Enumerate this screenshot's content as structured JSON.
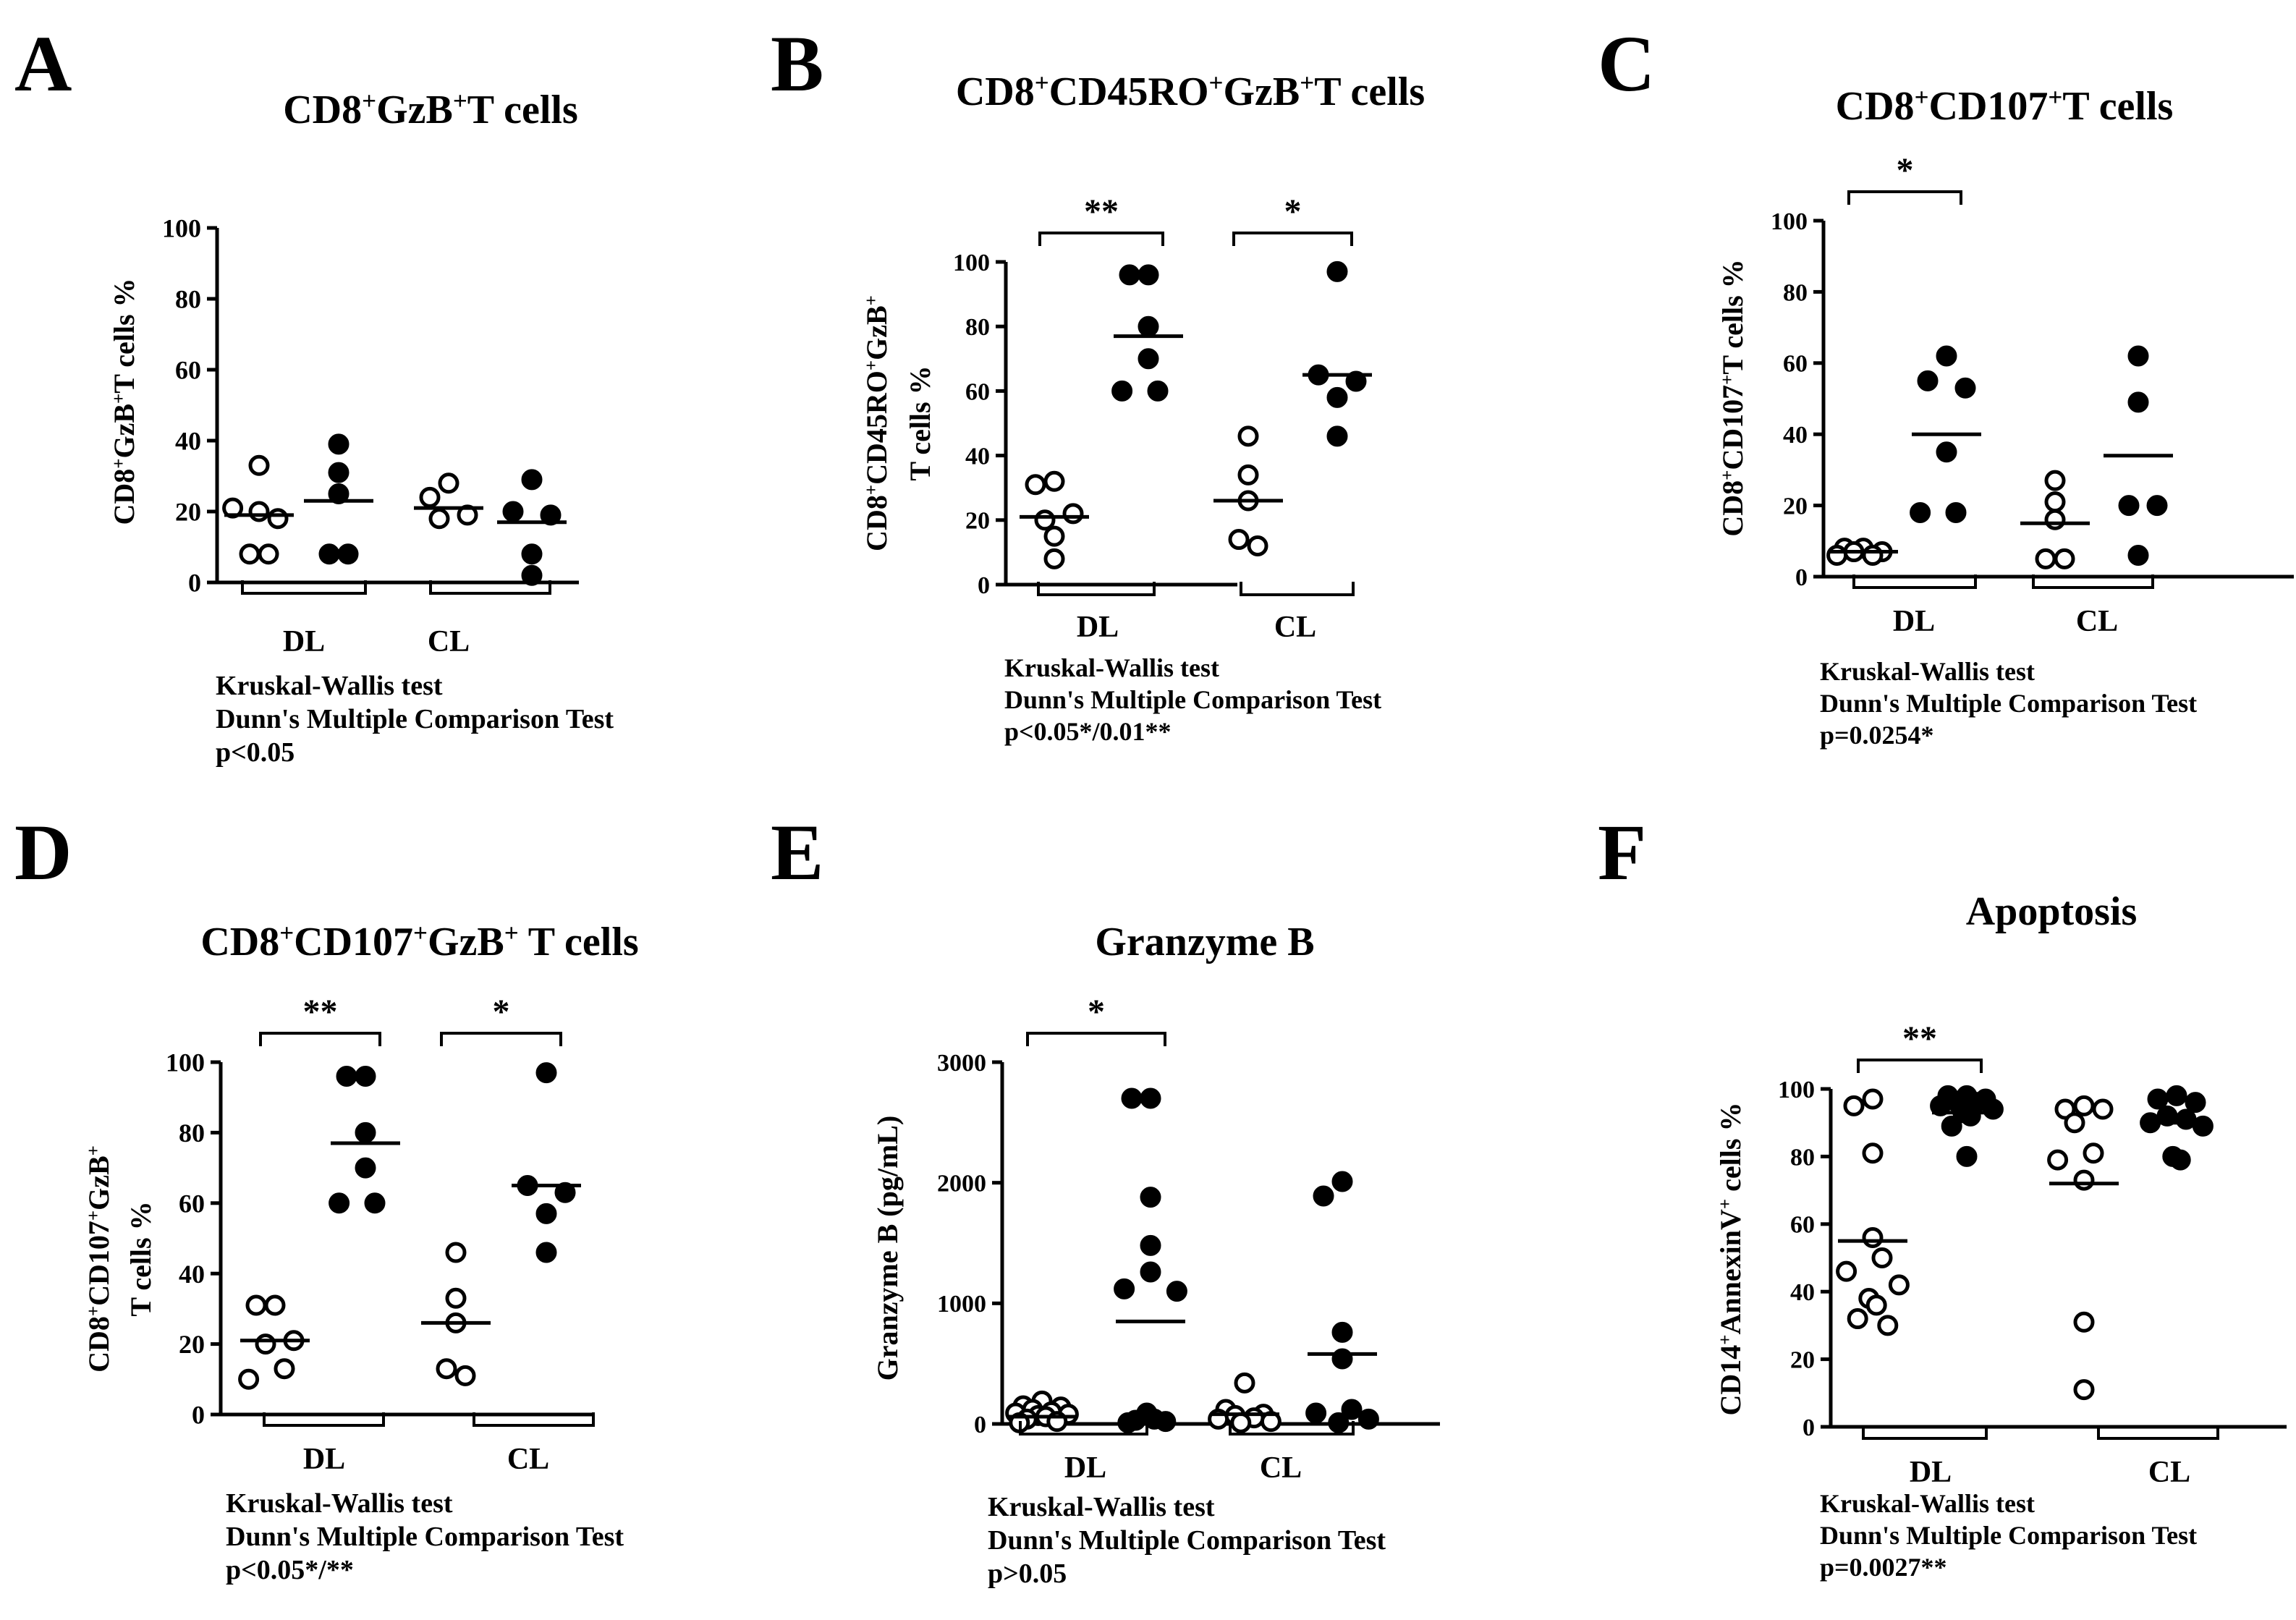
{
  "chart_data": [
    {
      "type": "scatter",
      "panel_letter": "A",
      "title": "CD8",
      "title_parts": [
        [
          "CD8",
          ""
        ],
        [
          "+",
          "sup"
        ],
        [
          "GzB",
          ""
        ],
        [
          "+",
          "sup"
        ],
        [
          "T cells",
          ""
        ]
      ],
      "ylabel_parts": [
        [
          "CD8",
          ""
        ],
        [
          "+",
          "sup"
        ],
        [
          "GzB",
          ""
        ],
        [
          "+",
          "sup"
        ],
        [
          "T cells %",
          ""
        ]
      ],
      "ylim": [
        0,
        100
      ],
      "yticks": [
        "0",
        "20",
        "40",
        "60",
        "80",
        "100"
      ],
      "yvalues": [
        0,
        20,
        40,
        60,
        80,
        100
      ],
      "groups": [
        "DL",
        "CL"
      ],
      "series": [
        {
          "name": "DL open",
          "fill": "open",
          "values": [
            20,
            33,
            18,
            8,
            8,
            21
          ],
          "median": 19
        },
        {
          "name": "DL filled",
          "fill": "filled",
          "values": [
            39,
            25,
            31,
            8,
            8
          ],
          "median": 23
        },
        {
          "name": "CL open",
          "fill": "open",
          "values": [
            28,
            24,
            19,
            18
          ],
          "median": 21
        },
        {
          "name": "CL filled",
          "fill": "filled",
          "values": [
            29,
            20,
            19,
            8,
            2
          ],
          "median": 17
        }
      ],
      "significance": [],
      "footnote": [
        "Kruskal-Wallis test",
        "Dunn's Multiple Comparison Test",
        "p<0.05"
      ]
    },
    {
      "type": "scatter",
      "panel_letter": "B",
      "title_parts": [
        [
          "CD8",
          ""
        ],
        [
          "+",
          "sup"
        ],
        [
          "CD45RO",
          ""
        ],
        [
          "+",
          "sup"
        ],
        [
          "GzB",
          ""
        ],
        [
          "+",
          "sup"
        ],
        [
          "T cells",
          ""
        ]
      ],
      "ylabel_parts": [
        [
          "CD8",
          ""
        ],
        [
          "+",
          "sup"
        ],
        [
          "CD45RO",
          ""
        ],
        [
          "+",
          "sup"
        ],
        [
          "GzB",
          ""
        ],
        [
          "+",
          "sup"
        ]
      ],
      "ylabel_line2": "T cells %",
      "ylim": [
        0,
        100
      ],
      "yticks": [
        "0",
        "20",
        "40",
        "60",
        "80",
        "100"
      ],
      "yvalues": [
        0,
        20,
        40,
        60,
        80,
        100
      ],
      "groups": [
        "DL",
        "CL"
      ],
      "series": [
        {
          "name": "DL open",
          "fill": "open",
          "values": [
            32,
            31,
            22,
            20,
            15,
            8
          ],
          "median": 21
        },
        {
          "name": "DL filled",
          "fill": "filled",
          "values": [
            96,
            96,
            80,
            70,
            60,
            60
          ],
          "median": 77
        },
        {
          "name": "CL open",
          "fill": "open",
          "values": [
            46,
            34,
            26,
            14,
            12
          ],
          "median": 26
        },
        {
          "name": "CL filled",
          "fill": "filled",
          "values": [
            97,
            65,
            63,
            58,
            46
          ],
          "median": 65
        }
      ],
      "significance": [
        {
          "from": 0,
          "to": 1,
          "label": "**"
        },
        {
          "from": 2,
          "to": 3,
          "label": "*"
        }
      ],
      "footnote": [
        "Kruskal-Wallis test",
        "Dunn's Multiple Comparison Test",
        "p<0.05*/0.01**"
      ]
    },
    {
      "type": "scatter",
      "panel_letter": "C",
      "title_parts": [
        [
          "CD8",
          ""
        ],
        [
          "+",
          "sup"
        ],
        [
          "CD107",
          ""
        ],
        [
          "+",
          "sup"
        ],
        [
          "T cells",
          ""
        ]
      ],
      "ylabel_parts": [
        [
          "CD8",
          ""
        ],
        [
          "+",
          "sup"
        ],
        [
          "CD107",
          ""
        ],
        [
          "+",
          "sup"
        ],
        [
          "T cells %",
          ""
        ]
      ],
      "ylim": [
        0,
        100
      ],
      "yticks": [
        "0",
        "20",
        "40",
        "60",
        "80",
        "100"
      ],
      "yvalues": [
        0,
        20,
        40,
        60,
        80,
        100
      ],
      "groups": [
        "DL",
        "CL"
      ],
      "series": [
        {
          "name": "DL open",
          "fill": "open",
          "values": [
            8,
            8,
            7,
            7,
            6,
            6
          ],
          "median": 7
        },
        {
          "name": "DL filled",
          "fill": "filled",
          "values": [
            62,
            55,
            53,
            35,
            18,
            18
          ],
          "median": 40
        },
        {
          "name": "CL open",
          "fill": "open",
          "values": [
            27,
            21,
            16,
            5,
            5
          ],
          "median": 15
        },
        {
          "name": "CL filled",
          "fill": "filled",
          "values": [
            62,
            49,
            20,
            20,
            6
          ],
          "median": 34
        }
      ],
      "significance": [
        {
          "from": 0,
          "to": 1,
          "label": "*"
        }
      ],
      "footnote": [
        "Kruskal-Wallis test",
        "Dunn's Multiple Comparison Test",
        "p=0.0254*"
      ]
    },
    {
      "type": "scatter",
      "panel_letter": "D",
      "title_parts": [
        [
          "CD8",
          ""
        ],
        [
          "+",
          "sup"
        ],
        [
          "CD107",
          ""
        ],
        [
          "+",
          "sup"
        ],
        [
          "GzB",
          ""
        ],
        [
          "+",
          "sup"
        ],
        [
          " T cells",
          ""
        ]
      ],
      "ylabel_parts": [
        [
          "CD8",
          ""
        ],
        [
          "+",
          "sup"
        ],
        [
          "CD107",
          ""
        ],
        [
          "+",
          "sup"
        ],
        [
          "GzB",
          ""
        ],
        [
          "+",
          "sup"
        ]
      ],
      "ylabel_line2": "T cells %",
      "ylim": [
        0,
        100
      ],
      "yticks": [
        "0",
        "20",
        "40",
        "60",
        "80",
        "100"
      ],
      "yvalues": [
        0,
        20,
        40,
        60,
        80,
        100
      ],
      "groups": [
        "DL",
        "CL"
      ],
      "series": [
        {
          "name": "DL open",
          "fill": "open",
          "values": [
            31,
            31,
            21,
            20,
            13,
            10
          ],
          "median": 21
        },
        {
          "name": "DL filled",
          "fill": "filled",
          "values": [
            96,
            96,
            80,
            70,
            60,
            60
          ],
          "median": 77
        },
        {
          "name": "CL open",
          "fill": "open",
          "values": [
            46,
            33,
            26,
            13,
            11
          ],
          "median": 26
        },
        {
          "name": "CL filled",
          "fill": "filled",
          "values": [
            97,
            65,
            63,
            57,
            46
          ],
          "median": 65
        }
      ],
      "significance": [
        {
          "from": 0,
          "to": 1,
          "label": "**"
        },
        {
          "from": 2,
          "to": 3,
          "label": "*"
        }
      ],
      "footnote": [
        "Kruskal-Wallis test",
        "Dunn's Multiple Comparison Test",
        "p<0.05*/**"
      ]
    },
    {
      "type": "scatter",
      "panel_letter": "E",
      "title_parts": [
        [
          "Granzyme B",
          ""
        ]
      ],
      "ylabel_parts": [
        [
          "Granzyme B (pg/mL)",
          ""
        ]
      ],
      "ylim": [
        0,
        3000
      ],
      "yticks": [
        "0",
        "1000",
        "2000",
        "3000"
      ],
      "yvalues": [
        0,
        1000,
        2000,
        3000
      ],
      "groups": [
        "DL",
        "CL"
      ],
      "series": [
        {
          "name": "DL open",
          "fill": "open",
          "values": [
            190,
            150,
            140,
            120,
            100,
            90,
            80,
            70,
            60,
            40,
            20,
            10
          ],
          "median": 60
        },
        {
          "name": "DL filled",
          "fill": "filled",
          "values": [
            2700,
            2700,
            1880,
            1480,
            1260,
            1120,
            1100,
            90,
            40,
            30,
            20,
            10
          ],
          "median": 850
        },
        {
          "name": "CL open",
          "fill": "open",
          "values": [
            340,
            120,
            80,
            70,
            50,
            40,
            20,
            10
          ],
          "median": 80
        },
        {
          "name": "CL filled",
          "fill": "filled",
          "values": [
            2010,
            1890,
            760,
            540,
            120,
            90,
            40,
            10
          ],
          "median": 580
        }
      ],
      "significance": [
        {
          "from": 0,
          "to": 1,
          "label": "*"
        }
      ],
      "footnote": [
        "Kruskal-Wallis test",
        "Dunn's Multiple Comparison Test",
        "p>0.05"
      ]
    },
    {
      "type": "scatter",
      "panel_letter": "F",
      "title_parts": [
        [
          "Apoptosis",
          ""
        ]
      ],
      "ylabel_parts": [
        [
          "CD14",
          ""
        ],
        [
          "+",
          "sup"
        ],
        [
          "AnnexinV",
          ""
        ],
        [
          "+",
          "sup"
        ],
        [
          " cells %",
          ""
        ]
      ],
      "ylim": [
        0,
        100
      ],
      "yticks": [
        "0",
        "20",
        "40",
        "60",
        "80",
        "100"
      ],
      "yvalues": [
        0,
        20,
        40,
        60,
        80,
        100
      ],
      "groups": [
        "DL",
        "CL"
      ],
      "series": [
        {
          "name": "DL open",
          "fill": "open",
          "values": [
            97,
            95,
            81,
            56,
            50,
            46,
            42,
            38,
            36,
            32,
            30
          ],
          "median": 55
        },
        {
          "name": "DL filled",
          "fill": "filled",
          "values": [
            98,
            98,
            97,
            96,
            96,
            95,
            94,
            93,
            92,
            89,
            80
          ],
          "median": 93
        },
        {
          "name": "CL open",
          "fill": "open",
          "values": [
            95,
            94,
            94,
            90,
            81,
            79,
            73,
            31,
            11
          ],
          "median": 72
        },
        {
          "name": "CL filled",
          "fill": "filled",
          "values": [
            98,
            97,
            96,
            92,
            91,
            90,
            89,
            80,
            79
          ],
          "median": 90
        }
      ],
      "significance": [
        {
          "from": 0,
          "to": 1,
          "label": "**"
        }
      ],
      "footnote": [
        "Kruskal-Wallis test",
        "Dunn's Multiple Comparison Test",
        "p=0.0027**"
      ]
    }
  ]
}
